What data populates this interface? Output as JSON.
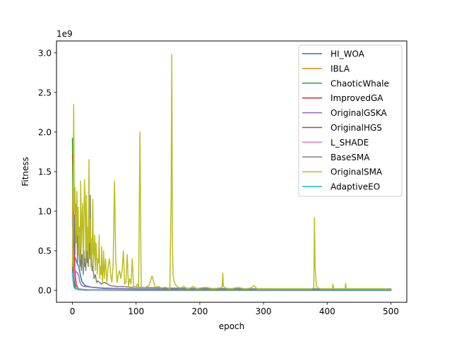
{
  "chart_data": {
    "type": "line",
    "title": "",
    "xlabel": "epoch",
    "ylabel": "Fitness",
    "y_offset_text": "1e9",
    "xlim": [
      -25,
      525
    ],
    "ylim": [
      -0.15,
      3.15
    ],
    "x_ticks": [
      0,
      100,
      200,
      300,
      400,
      500
    ],
    "y_ticks": [
      0.0,
      0.5,
      1.0,
      1.5,
      2.0,
      2.5,
      3.0
    ],
    "x_tick_labels": [
      "0",
      "100",
      "200",
      "300",
      "400",
      "500"
    ],
    "y_tick_labels": [
      "0.0",
      "0.5",
      "1.0",
      "1.5",
      "2.0",
      "2.5",
      "3.0"
    ],
    "grid": false,
    "legend_position": "upper right",
    "series": [
      {
        "name": "HI_WOA",
        "color": "#1f77b4",
        "x": [
          0,
          1,
          2,
          3,
          5,
          8,
          10,
          12,
          15,
          20,
          30,
          50,
          100,
          200,
          300,
          400,
          500
        ],
        "y": [
          0.18,
          0.33,
          0.45,
          0.44,
          0.4,
          0.33,
          0.3,
          0.21,
          0.11,
          0.06,
          0.04,
          0.025,
          0.02,
          0.015,
          0.012,
          0.01,
          0.01
        ]
      },
      {
        "name": "IBLA",
        "color": "#ff7f0e",
        "x": [
          0,
          1,
          2,
          3,
          4,
          6,
          8,
          10,
          15,
          30,
          100,
          500
        ],
        "y": [
          0.82,
          1.55,
          1.3,
          0.6,
          0.25,
          0.08,
          0.04,
          0.02,
          0.01,
          0.005,
          0.002,
          0.001
        ]
      },
      {
        "name": "ChaoticWhale",
        "color": "#2ca02c",
        "x": [
          0,
          1,
          2,
          3,
          4,
          5,
          6,
          8,
          10,
          20,
          100,
          500
        ],
        "y": [
          1.92,
          0.85,
          0.3,
          0.1,
          0.05,
          0.03,
          0.02,
          0.01,
          0.008,
          0.005,
          0.003,
          0.002
        ]
      },
      {
        "name": "ImprovedGA",
        "color": "#d62728",
        "x": [
          0,
          1,
          2,
          3,
          4,
          6,
          8,
          10,
          15,
          20,
          50,
          500
        ],
        "y": [
          1.7,
          1.65,
          0.9,
          0.35,
          0.18,
          0.08,
          0.04,
          0.02,
          0.01,
          0.005,
          0.003,
          0.002
        ]
      },
      {
        "name": "OriginalGSKA",
        "color": "#9467bd",
        "x": [
          0,
          2,
          5,
          8,
          10,
          12,
          15,
          18,
          20,
          25,
          30,
          40,
          50,
          70,
          100,
          200,
          300,
          400,
          500
        ],
        "y": [
          0.22,
          0.25,
          0.24,
          0.22,
          0.18,
          0.1,
          0.06,
          0.05,
          0.05,
          0.045,
          0.04,
          0.035,
          0.03,
          0.025,
          0.02,
          0.015,
          0.012,
          0.01,
          0.01
        ]
      },
      {
        "name": "OriginalHGS",
        "color": "#8c564b",
        "x": [
          0,
          1,
          2,
          3,
          5,
          8,
          10,
          20,
          50,
          100,
          500
        ],
        "y": [
          0.55,
          0.45,
          0.25,
          0.12,
          0.06,
          0.03,
          0.02,
          0.01,
          0.005,
          0.003,
          0.002
        ]
      },
      {
        "name": "L_SHADE",
        "color": "#e377c2",
        "x": [
          0,
          1,
          2,
          3,
          4,
          6,
          8,
          12,
          20,
          50,
          500
        ],
        "y": [
          0.92,
          0.6,
          0.35,
          0.2,
          0.12,
          0.06,
          0.03,
          0.015,
          0.008,
          0.004,
          0.002
        ]
      },
      {
        "name": "BaseSMA",
        "color": "#7f7f7f",
        "x": [
          0,
          1,
          2,
          3,
          4,
          5,
          6,
          7,
          8,
          9,
          10,
          11,
          12,
          13,
          14,
          15,
          16,
          17,
          18,
          19,
          20,
          21,
          22,
          23,
          24,
          25,
          26,
          27,
          28,
          29,
          30,
          31,
          32,
          34,
          36,
          38,
          40,
          45,
          50,
          60,
          70,
          80,
          90,
          100,
          150,
          200,
          300,
          400,
          500
        ],
        "y": [
          0.25,
          1.2,
          0.6,
          0.95,
          0.45,
          1.1,
          0.6,
          0.9,
          0.35,
          0.75,
          0.55,
          0.4,
          0.3,
          0.6,
          0.25,
          0.45,
          0.35,
          0.2,
          0.5,
          0.3,
          0.4,
          0.25,
          0.6,
          0.35,
          0.5,
          0.3,
          1.28,
          0.4,
          1.2,
          0.3,
          0.45,
          0.25,
          0.3,
          0.15,
          0.2,
          0.1,
          0.12,
          0.08,
          0.1,
          0.06,
          0.05,
          0.05,
          0.04,
          0.04,
          0.03,
          0.025,
          0.02,
          0.02,
          0.02
        ]
      },
      {
        "name": "OriginalSMA",
        "color": "#bcbd22",
        "x": [
          0,
          1,
          2,
          3,
          4,
          5,
          6,
          7,
          8,
          9,
          10,
          11,
          12,
          13,
          14,
          15,
          16,
          17,
          18,
          19,
          20,
          21,
          22,
          23,
          24,
          25,
          26,
          27,
          28,
          29,
          30,
          31,
          32,
          33,
          34,
          35,
          36,
          37,
          38,
          39,
          40,
          41,
          42,
          43,
          44,
          45,
          46,
          47,
          48,
          49,
          50,
          52,
          54,
          56,
          58,
          60,
          62,
          64,
          66,
          68,
          70,
          72,
          74,
          76,
          78,
          80,
          82,
          84,
          86,
          88,
          90,
          92,
          94,
          96,
          98,
          100,
          102,
          104,
          106,
          108,
          110,
          115,
          120,
          125,
          130,
          135,
          140,
          145,
          150,
          153,
          155,
          156,
          157,
          158,
          160,
          163,
          166,
          170,
          175,
          180,
          185,
          190,
          195,
          200,
          210,
          220,
          230,
          235,
          236,
          237,
          240,
          250,
          260,
          270,
          280,
          285,
          290,
          300,
          320,
          340,
          360,
          375,
          379,
          380,
          381,
          383,
          386,
          390,
          400,
          408,
          409,
          410,
          420,
          428,
          429,
          430,
          440,
          460,
          480,
          500
        ],
        "y": [
          0.3,
          0.9,
          2.35,
          1.0,
          1.3,
          0.8,
          0.6,
          1.25,
          0.7,
          1.05,
          0.45,
          0.8,
          0.4,
          1.38,
          0.55,
          0.9,
          1.1,
          0.3,
          0.8,
          1.4,
          1.1,
          0.35,
          1.2,
          0.5,
          0.8,
          0.4,
          1.65,
          0.6,
          0.9,
          0.3,
          0.65,
          0.45,
          1.15,
          0.3,
          0.5,
          0.7,
          0.25,
          0.6,
          0.45,
          0.2,
          0.4,
          0.35,
          0.7,
          0.15,
          0.3,
          0.2,
          0.55,
          0.1,
          0.25,
          0.5,
          0.15,
          0.4,
          0.1,
          0.3,
          0.4,
          0.2,
          0.1,
          0.35,
          1.38,
          0.4,
          0.1,
          0.2,
          0.25,
          0.15,
          0.25,
          0.5,
          0.08,
          0.1,
          0.45,
          0.05,
          0.15,
          0.08,
          0.4,
          0.06,
          0.04,
          0.05,
          0.08,
          0.04,
          2.0,
          0.05,
          0.03,
          0.04,
          0.06,
          0.18,
          0.04,
          0.05,
          0.03,
          0.04,
          0.03,
          0.02,
          1.2,
          2.98,
          0.6,
          0.2,
          0.1,
          0.06,
          0.04,
          0.03,
          0.05,
          0.02,
          0.03,
          0.05,
          0.02,
          0.03,
          0.04,
          0.02,
          0.03,
          0.04,
          0.22,
          0.05,
          0.03,
          0.02,
          0.04,
          0.02,
          0.03,
          0.06,
          0.02,
          0.02,
          0.02,
          0.02,
          0.02,
          0.02,
          0.03,
          0.92,
          0.3,
          0.05,
          0.03,
          0.02,
          0.02,
          0.02,
          0.08,
          0.02,
          0.02,
          0.02,
          0.09,
          0.02,
          0.02,
          0.02,
          0.02,
          0.02
        ]
      },
      {
        "name": "AdaptiveEO",
        "color": "#17becf",
        "x": [
          0,
          1,
          2,
          3,
          5,
          8,
          10,
          20,
          50,
          100,
          500
        ],
        "y": [
          0.22,
          0.12,
          0.06,
          0.03,
          0.02,
          0.015,
          0.01,
          0.008,
          0.006,
          0.005,
          0.004
        ]
      }
    ]
  }
}
